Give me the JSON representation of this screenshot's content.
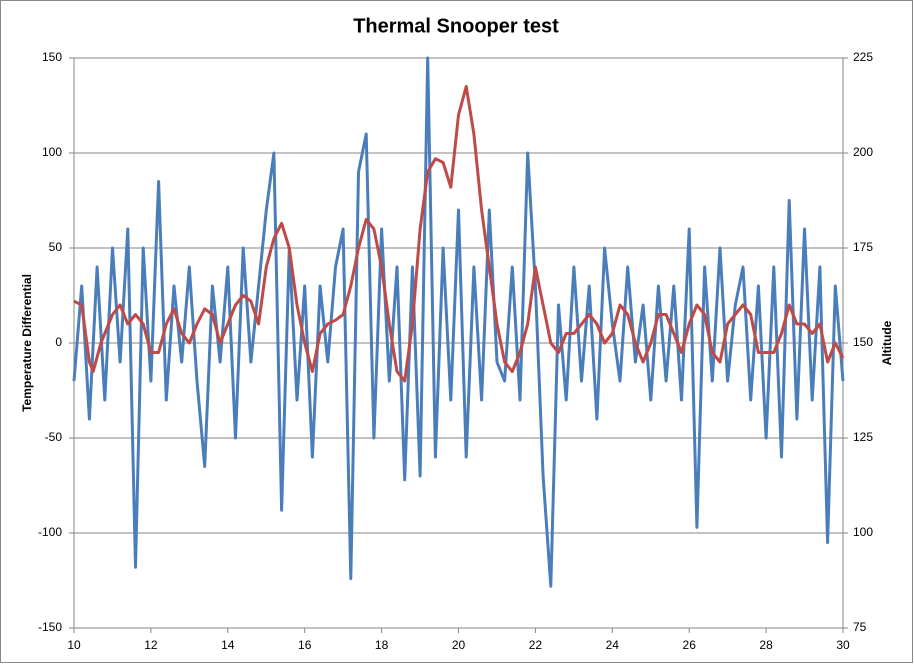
{
  "chart_data": {
    "type": "line",
    "title": "Thermal Snooper test",
    "y_label": "Temperature Differential",
    "y2_label": "Altitude",
    "xlim": [
      10,
      30
    ],
    "xticks": [
      10,
      12,
      14,
      16,
      18,
      20,
      22,
      24,
      26,
      28,
      30
    ],
    "ylim": [
      -150,
      150
    ],
    "yticks": [
      -150,
      -100,
      -50,
      0,
      50,
      100,
      150
    ],
    "y2lim": [
      75,
      225
    ],
    "y2ticks": [
      75,
      100,
      125,
      150,
      175,
      200,
      225
    ],
    "grid": true,
    "series": [
      {
        "color": "#4a7ebb",
        "x": [
          10.0,
          10.2,
          10.4,
          10.6,
          10.8,
          11.0,
          11.2,
          11.4,
          11.6,
          11.8,
          12.0,
          12.2,
          12.4,
          12.6,
          12.8,
          13.0,
          13.2,
          13.4,
          13.6,
          13.8,
          14.0,
          14.2,
          14.4,
          14.6,
          14.8,
          15.0,
          15.2,
          15.4,
          15.6,
          15.8,
          16.0,
          16.2,
          16.4,
          16.6,
          16.8,
          17.0,
          17.2,
          17.4,
          17.6,
          17.8,
          18.0,
          18.2,
          18.4,
          18.6,
          18.8,
          19.0,
          19.2,
          19.4,
          19.6,
          19.8,
          20.0,
          20.2,
          20.4,
          20.6,
          20.8,
          21.0,
          21.2,
          21.4,
          21.6,
          21.8,
          22.0,
          22.2,
          22.4,
          22.6,
          22.8,
          23.0,
          23.2,
          23.4,
          23.6,
          23.8,
          24.0,
          24.2,
          24.4,
          24.6,
          24.8,
          25.0,
          25.2,
          25.4,
          25.6,
          25.8,
          26.0,
          26.2,
          26.4,
          26.6,
          26.8,
          27.0,
          27.2,
          27.4,
          27.6,
          27.8,
          28.0,
          28.2,
          28.4,
          28.6,
          28.8,
          29.0,
          29.2,
          29.4,
          29.6,
          29.8,
          30.0
        ],
        "values": [
          -20,
          30,
          -40,
          40,
          -30,
          50,
          -10,
          60,
          -118,
          50,
          -20,
          85,
          -30,
          30,
          -10,
          40,
          -20,
          -65,
          30,
          -10,
          40,
          -50,
          50,
          -10,
          30,
          70,
          100,
          -88,
          50,
          -30,
          30,
          -60,
          30,
          -10,
          40,
          60,
          -124,
          90,
          110,
          -50,
          60,
          -20,
          40,
          -72,
          40,
          -70,
          150,
          -60,
          50,
          -30,
          70,
          -60,
          40,
          -30,
          70,
          -10,
          -20,
          40,
          -30,
          100,
          30,
          -70,
          -128,
          20,
          -30,
          40,
          -20,
          30,
          -40,
          50,
          10,
          -20,
          40,
          -10,
          20,
          -30,
          30,
          -20,
          30,
          -30,
          60,
          -97,
          40,
          -20,
          50,
          -20,
          20,
          40,
          -30,
          30,
          -50,
          40,
          -60,
          75,
          -40,
          60,
          -30,
          40,
          -105,
          30,
          -20
        ]
      },
      {
        "color": "#be4b48",
        "axis": "y2",
        "x": [
          10.0,
          10.2,
          10.4,
          10.5,
          10.7,
          11.0,
          11.2,
          11.4,
          11.6,
          11.8,
          12.0,
          12.2,
          12.4,
          12.6,
          12.8,
          13.0,
          13.2,
          13.4,
          13.6,
          13.8,
          14.0,
          14.2,
          14.4,
          14.6,
          14.8,
          15.0,
          15.2,
          15.4,
          15.6,
          15.8,
          16.0,
          16.2,
          16.4,
          16.6,
          16.8,
          17.0,
          17.2,
          17.4,
          17.6,
          17.8,
          18.0,
          18.2,
          18.4,
          18.6,
          18.8,
          19.0,
          19.2,
          19.4,
          19.6,
          19.8,
          20.0,
          20.2,
          20.4,
          20.6,
          20.8,
          21.0,
          21.2,
          21.4,
          21.6,
          21.8,
          22.0,
          22.2,
          22.4,
          22.6,
          22.8,
          23.0,
          23.4,
          23.6,
          23.8,
          24.0,
          24.2,
          24.4,
          24.6,
          24.8,
          25.0,
          25.2,
          25.4,
          25.6,
          25.8,
          26.0,
          26.2,
          26.4,
          26.6,
          26.8,
          27.0,
          27.4,
          27.6,
          27.8,
          28.0,
          28.2,
          28.4,
          28.6,
          28.8,
          29.0,
          29.2,
          29.4,
          29.6,
          29.8,
          30.0
        ],
        "values": [
          161,
          160,
          145,
          142.5,
          150,
          157.5,
          160,
          155,
          157.5,
          155,
          147.5,
          147.5,
          155,
          159,
          152.5,
          150,
          155,
          159,
          157.5,
          150,
          155,
          160,
          162.5,
          161,
          155,
          170,
          177.5,
          181.5,
          175,
          160,
          150,
          142.5,
          152.5,
          155,
          156,
          157.5,
          165,
          175,
          182.5,
          180,
          170,
          155,
          142.5,
          140,
          155,
          180,
          195,
          198.5,
          197.5,
          191,
          210,
          217.5,
          205,
          185,
          170,
          155,
          145,
          142.5,
          147.5,
          155,
          170,
          160,
          150,
          147.5,
          152.5,
          152.5,
          157.5,
          155,
          150,
          152.5,
          160,
          157.5,
          150,
          145,
          150,
          157.5,
          157.5,
          152.5,
          147.5,
          155,
          160,
          157.5,
          147.5,
          145,
          155,
          160,
          157.5,
          147.5,
          147.5,
          147.5,
          152.5,
          160,
          155,
          155,
          152.5,
          155,
          145,
          150,
          146
        ]
      }
    ]
  }
}
